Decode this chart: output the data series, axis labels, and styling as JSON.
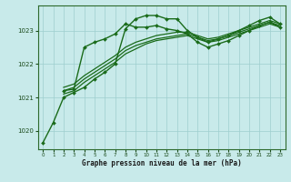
{
  "title": "Graphe pression niveau de la mer (hPa)",
  "background_color": "#c8eaea",
  "grid_color": "#9ecece",
  "line_color": "#1a6b1a",
  "xlim": [
    -0.5,
    23.5
  ],
  "ylim": [
    1019.45,
    1023.75
  ],
  "yticks": [
    1020,
    1021,
    1022,
    1023
  ],
  "xticks": [
    0,
    1,
    2,
    3,
    4,
    5,
    6,
    7,
    8,
    9,
    10,
    11,
    12,
    13,
    14,
    15,
    16,
    17,
    18,
    19,
    20,
    21,
    22,
    23
  ],
  "figsize": [
    3.2,
    2.0
  ],
  "dpi": 100,
  "series": [
    {
      "x": [
        0,
        1,
        2,
        3,
        4,
        5,
        6,
        7,
        8,
        9,
        10,
        11,
        12,
        13,
        14,
        15,
        16,
        17,
        18,
        19,
        20,
        21,
        22,
        23
      ],
      "y": [
        1019.65,
        1020.25,
        1021.0,
        1021.15,
        1021.3,
        1021.55,
        1021.75,
        1022.0,
        1023.05,
        1023.35,
        1023.45,
        1023.45,
        1023.35,
        1023.35,
        1023.0,
        1022.8,
        1022.65,
        1022.75,
        1022.85,
        1023.0,
        1023.15,
        1023.3,
        1023.4,
        1023.2
      ],
      "marker": true,
      "lw": 1.0
    },
    {
      "x": [
        2,
        3,
        4,
        5,
        6,
        7,
        8,
        9,
        10,
        11,
        12,
        13,
        14,
        15,
        16,
        17,
        18,
        19,
        20,
        21,
        22,
        23
      ],
      "y": [
        1021.2,
        1021.25,
        1022.5,
        1022.65,
        1022.75,
        1022.9,
        1023.2,
        1023.1,
        1023.1,
        1023.15,
        1023.05,
        1023.0,
        1022.9,
        1022.65,
        1022.5,
        1022.6,
        1022.7,
        1022.85,
        1023.0,
        1023.15,
        1023.25,
        1023.1
      ],
      "marker": true,
      "lw": 1.0
    },
    {
      "x": [
        2,
        3,
        4,
        5,
        6,
        7,
        8,
        9,
        10,
        11,
        12,
        13,
        14,
        15,
        16,
        17,
        18,
        19,
        20,
        21,
        22,
        23
      ],
      "y": [
        1021.1,
        1021.2,
        1021.45,
        1021.65,
        1021.85,
        1022.05,
        1022.3,
        1022.45,
        1022.6,
        1022.7,
        1022.75,
        1022.8,
        1022.85,
        1022.75,
        1022.65,
        1022.7,
        1022.8,
        1022.9,
        1023.0,
        1023.1,
        1023.2,
        1023.1
      ],
      "marker": false,
      "lw": 0.9
    },
    {
      "x": [
        2,
        3,
        4,
        5,
        6,
        7,
        8,
        9,
        10,
        11,
        12,
        13,
        14,
        15,
        16,
        17,
        18,
        19,
        20,
        21,
        22,
        23
      ],
      "y": [
        1021.2,
        1021.3,
        1021.55,
        1021.75,
        1021.95,
        1022.15,
        1022.4,
        1022.55,
        1022.65,
        1022.75,
        1022.8,
        1022.85,
        1022.9,
        1022.8,
        1022.7,
        1022.75,
        1022.85,
        1022.95,
        1023.05,
        1023.15,
        1023.25,
        1023.15
      ],
      "marker": false,
      "lw": 0.9
    },
    {
      "x": [
        2,
        3,
        4,
        5,
        6,
        7,
        8,
        9,
        10,
        11,
        12,
        13,
        14,
        15,
        16,
        17,
        18,
        19,
        20,
        21,
        22,
        23
      ],
      "y": [
        1021.3,
        1021.4,
        1021.65,
        1021.85,
        1022.05,
        1022.25,
        1022.5,
        1022.65,
        1022.75,
        1022.85,
        1022.9,
        1022.95,
        1022.95,
        1022.85,
        1022.75,
        1022.8,
        1022.9,
        1023.0,
        1023.1,
        1023.2,
        1023.3,
        1023.2
      ],
      "marker": false,
      "lw": 0.9
    }
  ]
}
